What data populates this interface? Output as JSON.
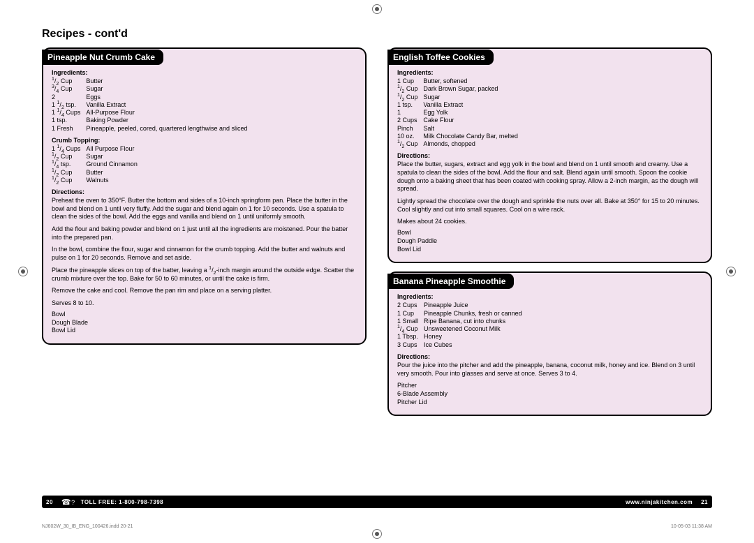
{
  "page": {
    "heading": "Recipes - cont'd",
    "background": "#ffffff",
    "recipe_bg": "#f2e2ee",
    "border_color": "#000000"
  },
  "recipe1": {
    "title": "Pineapple Nut Crumb Cake",
    "ing_label": "Ingredients:",
    "ing": [
      [
        "1/2 Cup",
        "Butter"
      ],
      [
        "3/4 Cup",
        "Sugar"
      ],
      [
        "2",
        "Eggs"
      ],
      [
        "1 1/2 tsp.",
        "Vanilla Extract"
      ],
      [
        "1 1/4 Cups",
        "All-Purpose Flour"
      ],
      [
        "1 tsp.",
        "Baking Powder"
      ],
      [
        "1 Fresh",
        "Pineapple, peeled, cored, quartered lengthwise and sliced"
      ]
    ],
    "crumb_label": "Crumb Topping:",
    "crumb": [
      [
        "1 1/4 Cups",
        "All Purpose Flour"
      ],
      [
        "1/2 Cup",
        "Sugar"
      ],
      [
        "1/4 tsp.",
        "Ground Cinnamon"
      ],
      [
        "1/2 Cup",
        "Butter"
      ],
      [
        "1/2 Cup",
        "Walnuts"
      ]
    ],
    "dir_label": "Directions:",
    "dir": [
      "Preheat the oven to 350°F.  Butter the bottom and sides of a 10-inch springform pan.  Place the butter in the bowl and blend on 1 until very fluffy.  Add the sugar and blend again on 1 for 10 seconds.  Use a spatula to clean the sides of the bowl.  Add the eggs and vanilla and blend on 1 until uniformly smooth.",
      "Add the flour and baking powder and blend on 1 just until all the ingredients are moistened.  Pour the batter into the prepared pan.",
      "In the bowl, combine the flour, sugar and cinnamon for the crumb topping.  Add the butter and walnuts and pulse on 1 for 20 seconds.  Remove and set aside.",
      "Place the pineapple slices on top of the batter, leaving a 1/2-inch margin around the outside edge.  Scatter the crumb mixture over the top.  Bake for 50 to 60 minutes, or until the cake is firm.",
      "Remove the cake and cool.  Remove the pan rim and place on a serving platter."
    ],
    "serves": "Serves 8 to 10.",
    "equip": [
      "Bowl",
      "Dough Blade",
      "Bowl Lid"
    ]
  },
  "recipe2": {
    "title": "English Toffee Cookies",
    "ing_label": "Ingredients:",
    "ing": [
      [
        "1 Cup",
        "Butter, softened"
      ],
      [
        "1/2 Cup",
        "Dark Brown Sugar, packed"
      ],
      [
        "1/2 Cup",
        "Sugar"
      ],
      [
        "1 tsp.",
        "Vanilla Extract"
      ],
      [
        "1",
        "Egg Yolk"
      ],
      [
        "2 Cups",
        "Cake Flour"
      ],
      [
        "Pinch",
        "Salt"
      ],
      [
        "10 oz.",
        "Milk Chocolate Candy Bar, melted"
      ],
      [
        "1/2 Cup",
        "Almonds, chopped"
      ]
    ],
    "dir_label": "Directions:",
    "dir": [
      "Place the butter, sugars, extract and egg yolk in the bowl and blend on 1 until smooth and creamy.  Use a spatula to clean the sides of the bowl.  Add the flour and salt.  Blend again until smooth.  Spoon the cookie dough onto a baking sheet that has been coated with cooking spray.  Allow a 2-inch margin, as the dough will spread.",
      "Lightly spread the chocolate over the dough and sprinkle the nuts over all.  Bake at 350° for 15 to 20 minutes.  Cool slightly and cut into small squares.  Cool on a wire rack."
    ],
    "makes": "Makes about 24 cookies.",
    "equip": [
      "Bowl",
      "Dough Paddle",
      "Bowl Lid"
    ]
  },
  "recipe3": {
    "title": "Banana Pineapple Smoothie",
    "ing_label": "Ingredients:",
    "ing": [
      [
        "2 Cups",
        "Pineapple Juice"
      ],
      [
        "1 Cup",
        "Pineapple Chunks, fresh or canned"
      ],
      [
        "1 Small",
        "Ripe Banana, cut into chunks"
      ],
      [
        "1/4 Cup",
        "Unsweetened Coconut Milk"
      ],
      [
        "1 Tbsp.",
        "Honey"
      ],
      [
        "3 Cups",
        "Ice Cubes"
      ]
    ],
    "dir_label": "Directions:",
    "dir": [
      "Pour the juice into the pitcher and add the pineapple, banana, coconut milk, honey and ice.  Blend on 3 until very smooth.  Pour into glasses and serve at once.  Serves 3 to 4."
    ],
    "equip": [
      "Pitcher",
      "6-Blade Assembly",
      "Pitcher Lid"
    ]
  },
  "footer": {
    "pg_left": "20",
    "toll": "TOLL FREE: 1-800-798-7398",
    "url": "www.ninjakitchen.com",
    "pg_right": "21",
    "print_file": "NJ602W_30_IB_ENG_100426.indd   20-21",
    "print_time": "10-05-03   11:38 AM"
  }
}
